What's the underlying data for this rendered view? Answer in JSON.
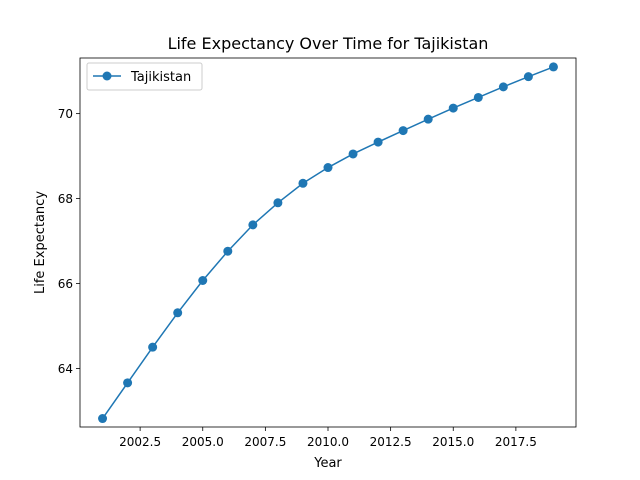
{
  "chart_data": {
    "type": "line",
    "title": "Life Expectancy Over Time for Tajikistan",
    "xlabel": "Year",
    "ylabel": "Life Expectancy",
    "xlim": [
      2000.1,
      2019.9
    ],
    "ylim": [
      62.62,
      71.31
    ],
    "x_ticks": [
      2002.5,
      2005.0,
      2007.5,
      2010.0,
      2012.5,
      2015.0,
      2017.5
    ],
    "x_tick_labels": [
      "2002.5",
      "2005.0",
      "2007.5",
      "2010.0",
      "2012.5",
      "2015.0",
      "2017.5"
    ],
    "y_ticks": [
      64,
      66,
      68,
      70
    ],
    "y_tick_labels": [
      "64",
      "66",
      "68",
      "70"
    ],
    "grid": false,
    "legend_position": "top-left",
    "colors": {
      "line": "#1f77b4",
      "axes": "#000000"
    },
    "series": [
      {
        "name": "Tajikistan",
        "x": [
          2001,
          2002,
          2003,
          2004,
          2005,
          2006,
          2007,
          2008,
          2009,
          2010,
          2011,
          2012,
          2013,
          2014,
          2015,
          2016,
          2017,
          2018,
          2019
        ],
        "y": [
          62.82,
          63.66,
          64.5,
          65.31,
          66.07,
          66.76,
          67.38,
          67.9,
          68.36,
          68.73,
          69.05,
          69.33,
          69.6,
          69.87,
          70.13,
          70.38,
          70.63,
          70.87,
          71.1
        ]
      }
    ]
  }
}
